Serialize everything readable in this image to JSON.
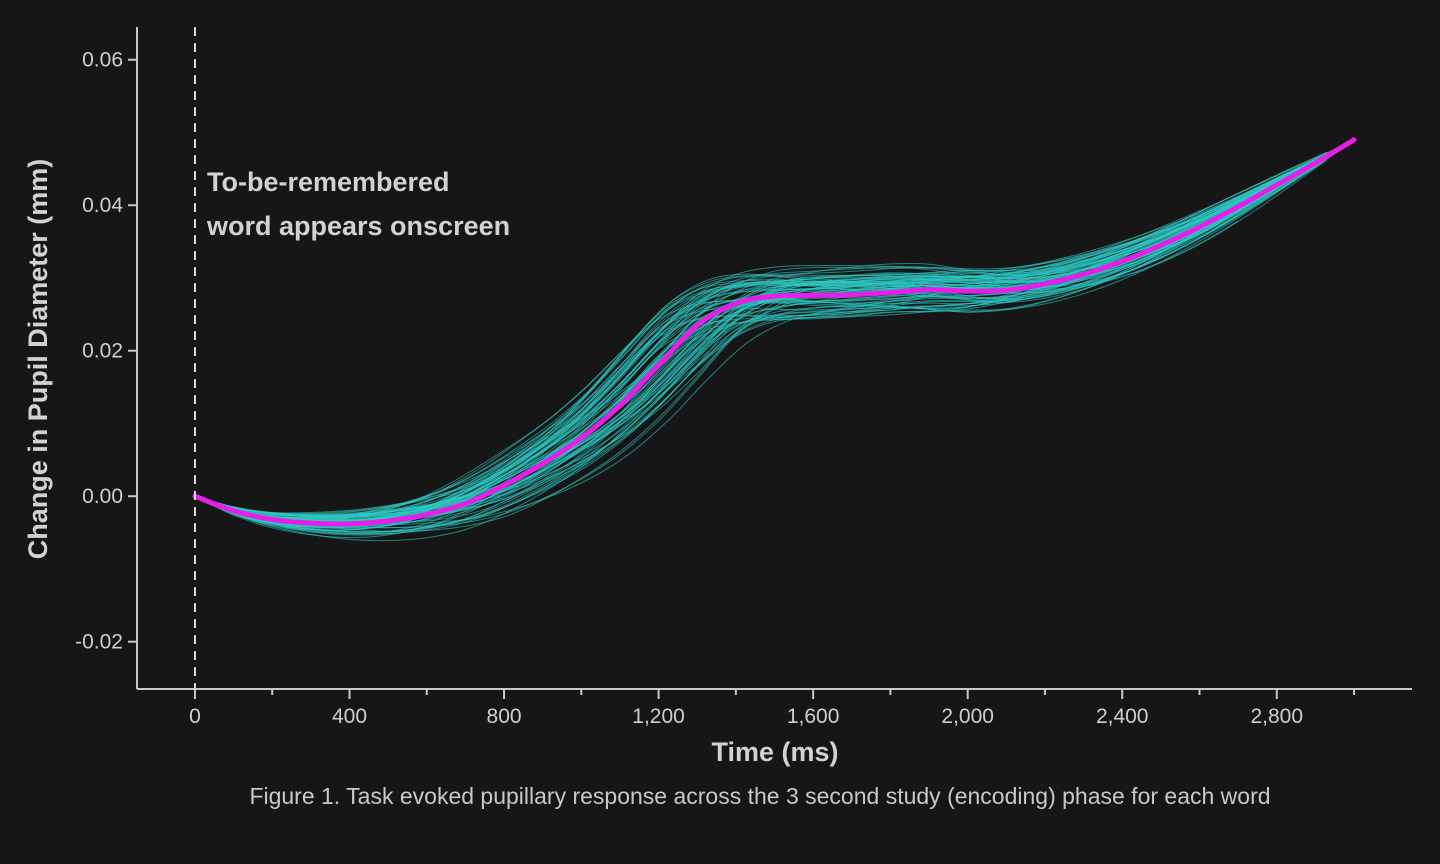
{
  "chart_data": {
    "type": "line",
    "xlabel": "Time (ms)",
    "ylabel": "Change in Pupil Diameter (mm)",
    "xlim": [
      -150,
      3150
    ],
    "ylim": [
      -0.0265,
      0.0645
    ],
    "x_ticks": [
      0,
      400,
      800,
      1200,
      1600,
      2000,
      2400,
      2800
    ],
    "x_tick_labels": [
      "0",
      "400",
      "800",
      "1,200",
      "1,600",
      "2,000",
      "2,400",
      "2,800"
    ],
    "y_ticks": [
      -0.02,
      0.0,
      0.02,
      0.04,
      0.06
    ],
    "y_tick_labels": [
      "-0.02",
      "0.00",
      "0.02",
      "0.04",
      "0.06"
    ],
    "grid": false,
    "annotation": {
      "line1": "To-be-remembered",
      "line2": "word appears onscreen",
      "x": 0
    },
    "caption": "Figure 1. Task evoked pupillary response across the 3 second study (encoding) phase for each word",
    "colors": {
      "background": "#161616",
      "axis": "#c8c8c8",
      "individual_words": "#2fc9c4",
      "mean": "#e81ee8"
    },
    "series": [
      {
        "role": "mean",
        "x": [
          0,
          100,
          200,
          300,
          400,
          500,
          600,
          700,
          800,
          900,
          1000,
          1100,
          1200,
          1300,
          1400,
          1500,
          1600,
          1700,
          1800,
          1900,
          2000,
          2100,
          2200,
          2300,
          2400,
          2500,
          2600,
          2700,
          2800,
          2900,
          3000
        ],
        "values": [
          0.0,
          -0.002,
          -0.0032,
          -0.0037,
          -0.0038,
          -0.0034,
          -0.0025,
          -0.001,
          0.0015,
          0.0045,
          0.008,
          0.0125,
          0.018,
          0.0235,
          0.0265,
          0.0275,
          0.0276,
          0.0277,
          0.028,
          0.0284,
          0.0282,
          0.0283,
          0.0292,
          0.0305,
          0.0323,
          0.0345,
          0.037,
          0.0398,
          0.0428,
          0.0458,
          0.049
        ]
      }
    ],
    "individual_curve_count": 80
  }
}
